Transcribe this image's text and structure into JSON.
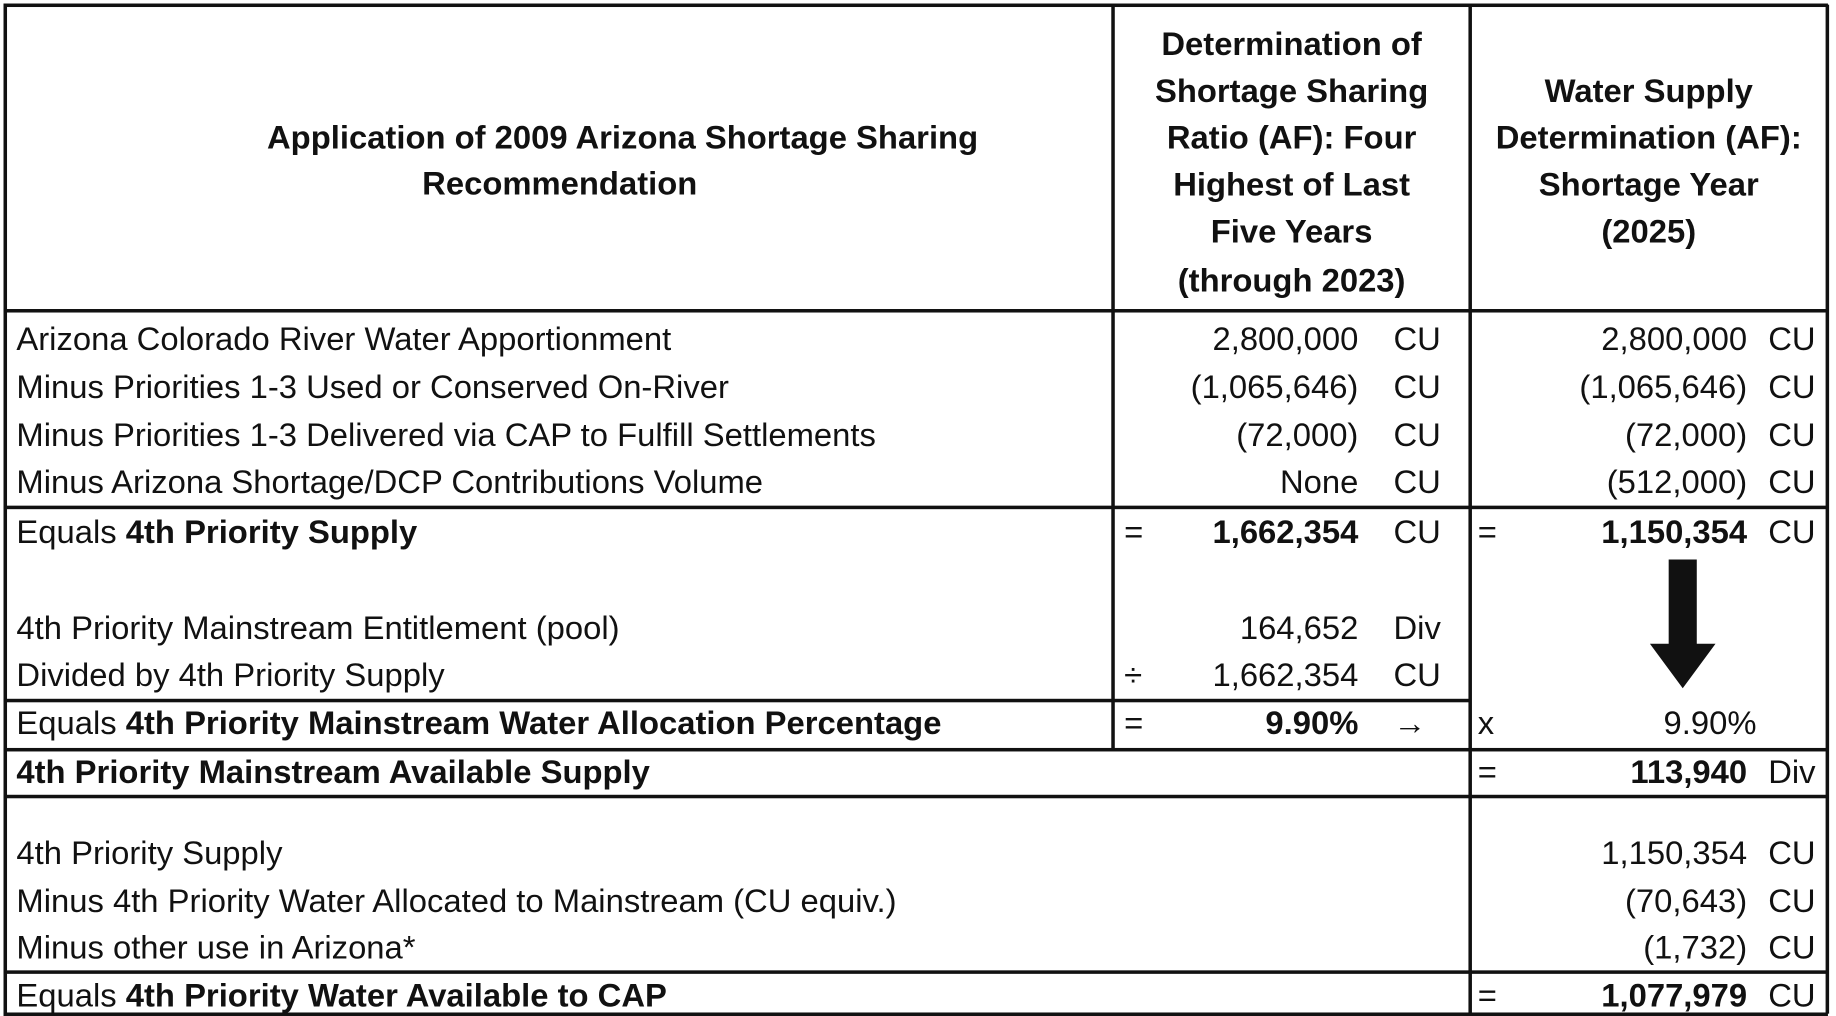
{
  "header": {
    "col1": [
      "Application of 2009 Arizona Shortage Sharing",
      "Recommendation"
    ],
    "col2": [
      "Determination of",
      "Shortage Sharing",
      "Ratio (AF): Four",
      "Highest of Last",
      "Five Years",
      "(through 2023)"
    ],
    "col3": [
      "Water Supply",
      "Determination (AF):",
      "Shortage Year",
      "(2025)"
    ]
  },
  "rows": [
    {
      "label": "Arizona Colorado River Water Apportionment",
      "c2": {
        "value": "2,800,000",
        "unit": "CU"
      },
      "c3": {
        "value": "2,800,000",
        "unit": "CU"
      }
    },
    {
      "label": "Minus Priorities 1-3 Used or Conserved On-River",
      "c2": {
        "value": "(1,065,646)",
        "unit": "CU"
      },
      "c3": {
        "value": "(1,065,646)",
        "unit": "CU"
      }
    },
    {
      "label": "Minus Priorities 1-3 Delivered via CAP to Fulfill Settlements",
      "c2": {
        "value": "(72,000)",
        "unit": "CU"
      },
      "c3": {
        "value": "(72,000)",
        "unit": "CU"
      }
    },
    {
      "label": "Minus Arizona Shortage/DCP Contributions Volume",
      "c2": {
        "value": "None",
        "unit": "CU"
      },
      "c3": {
        "value": "(512,000)",
        "unit": "CU"
      }
    },
    {
      "label": "Equals ",
      "label_bold": "4th Priority Supply",
      "c2": {
        "op": "=",
        "value": "1,662,354",
        "unit": "CU",
        "bold": true
      },
      "c3": {
        "op": "=",
        "value": "1,150,354",
        "unit": "CU",
        "bold": true
      }
    },
    {
      "label": "4th Priority Mainstream Entitlement (pool)",
      "c2": {
        "value": "164,652",
        "unit": "Div"
      }
    },
    {
      "label": "Divided by 4th Priority Supply",
      "c2": {
        "op": "÷",
        "value": "1,662,354",
        "unit": "CU"
      }
    },
    {
      "label": "Equals ",
      "label_bold": "4th Priority Mainstream Water Allocation Percentage",
      "c2": {
        "op": "=",
        "value": "9.90%",
        "unit": "→",
        "bold": true
      },
      "c3": {
        "op": "x",
        "value": "9.90%"
      }
    },
    {
      "label_bold": "4th Priority Mainstream Available Supply",
      "c3": {
        "op": "=",
        "value": "113,940",
        "unit": "Div",
        "bold": true
      }
    },
    {
      "label": "4th Priority Supply",
      "c3": {
        "value": "1,150,354",
        "unit": "CU"
      }
    },
    {
      "label": "Minus 4th Priority Water Allocated to Mainstream (CU equiv.)",
      "c3": {
        "value": "(70,643)",
        "unit": "CU"
      }
    },
    {
      "label": "Minus other use in Arizona*",
      "c3": {
        "value": "(1,732)",
        "unit": "CU"
      }
    },
    {
      "label": "Equals ",
      "label_bold": "4th Priority Water Available to CAP",
      "c3": {
        "op": "=",
        "value": "1,077,979",
        "unit": "CU",
        "bold": true
      }
    }
  ]
}
